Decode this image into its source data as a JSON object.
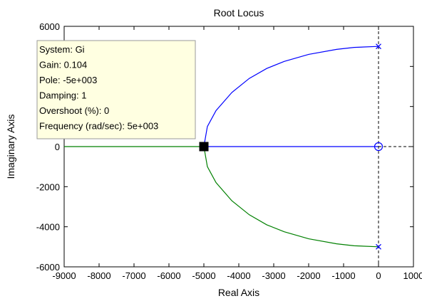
{
  "chart_data": {
    "type": "line",
    "title": "Root Locus",
    "xlabel": "Real Axis",
    "ylabel": "Imaginary Axis",
    "xlim": [
      -9000,
      1000
    ],
    "ylim": [
      -6000,
      6000
    ],
    "xticks": [
      -9000,
      -8000,
      -7000,
      -6000,
      -5000,
      -4000,
      -3000,
      -2000,
      -1000,
      0,
      1000
    ],
    "yticks": [
      -6000,
      -4000,
      -2000,
      0,
      2000,
      4000,
      6000
    ],
    "series": [
      {
        "color": "#0000ff",
        "x": [
          0,
          -700,
          -1200,
          -2000,
          -2700,
          -3200,
          -3700,
          -4200,
          -4650,
          -4900,
          -5000
        ],
        "y": [
          5000,
          4950,
          4850,
          4600,
          4250,
          3900,
          3400,
          2700,
          1800,
          1000,
          0
        ]
      },
      {
        "color": "#008000",
        "x": [
          0,
          -700,
          -1200,
          -2000,
          -2700,
          -3200,
          -3700,
          -4200,
          -4650,
          -4900,
          -5000
        ],
        "y": [
          -5000,
          -4950,
          -4850,
          -4600,
          -4250,
          -3900,
          -3400,
          -2700,
          -1800,
          -1000,
          0
        ]
      },
      {
        "color": "#0000ff",
        "x": [
          -5000,
          0
        ],
        "y": [
          0,
          0
        ]
      },
      {
        "color": "#008000",
        "x": [
          -9000,
          -5000
        ],
        "y": [
          0,
          0
        ]
      }
    ],
    "poles": [
      {
        "x": 0,
        "y": 5000
      },
      {
        "x": 0,
        "y": -5000
      }
    ],
    "zeros": [
      {
        "x": 0,
        "y": 0
      }
    ],
    "selected_point": {
      "x": -5000,
      "y": 0
    },
    "datatip": {
      "lines": [
        "System: Gi",
        "Gain: 0.104",
        "Pole: -5e+003",
        "Damping: 1",
        "Overshoot (%): 0",
        "Frequency (rad/sec): 5e+003"
      ]
    },
    "colors": {
      "upper_branch": "#0000ff",
      "lower_branch": "#008000",
      "datatip_bg": "#ffffe1",
      "reference_lines": "#000000"
    },
    "grid": false
  }
}
